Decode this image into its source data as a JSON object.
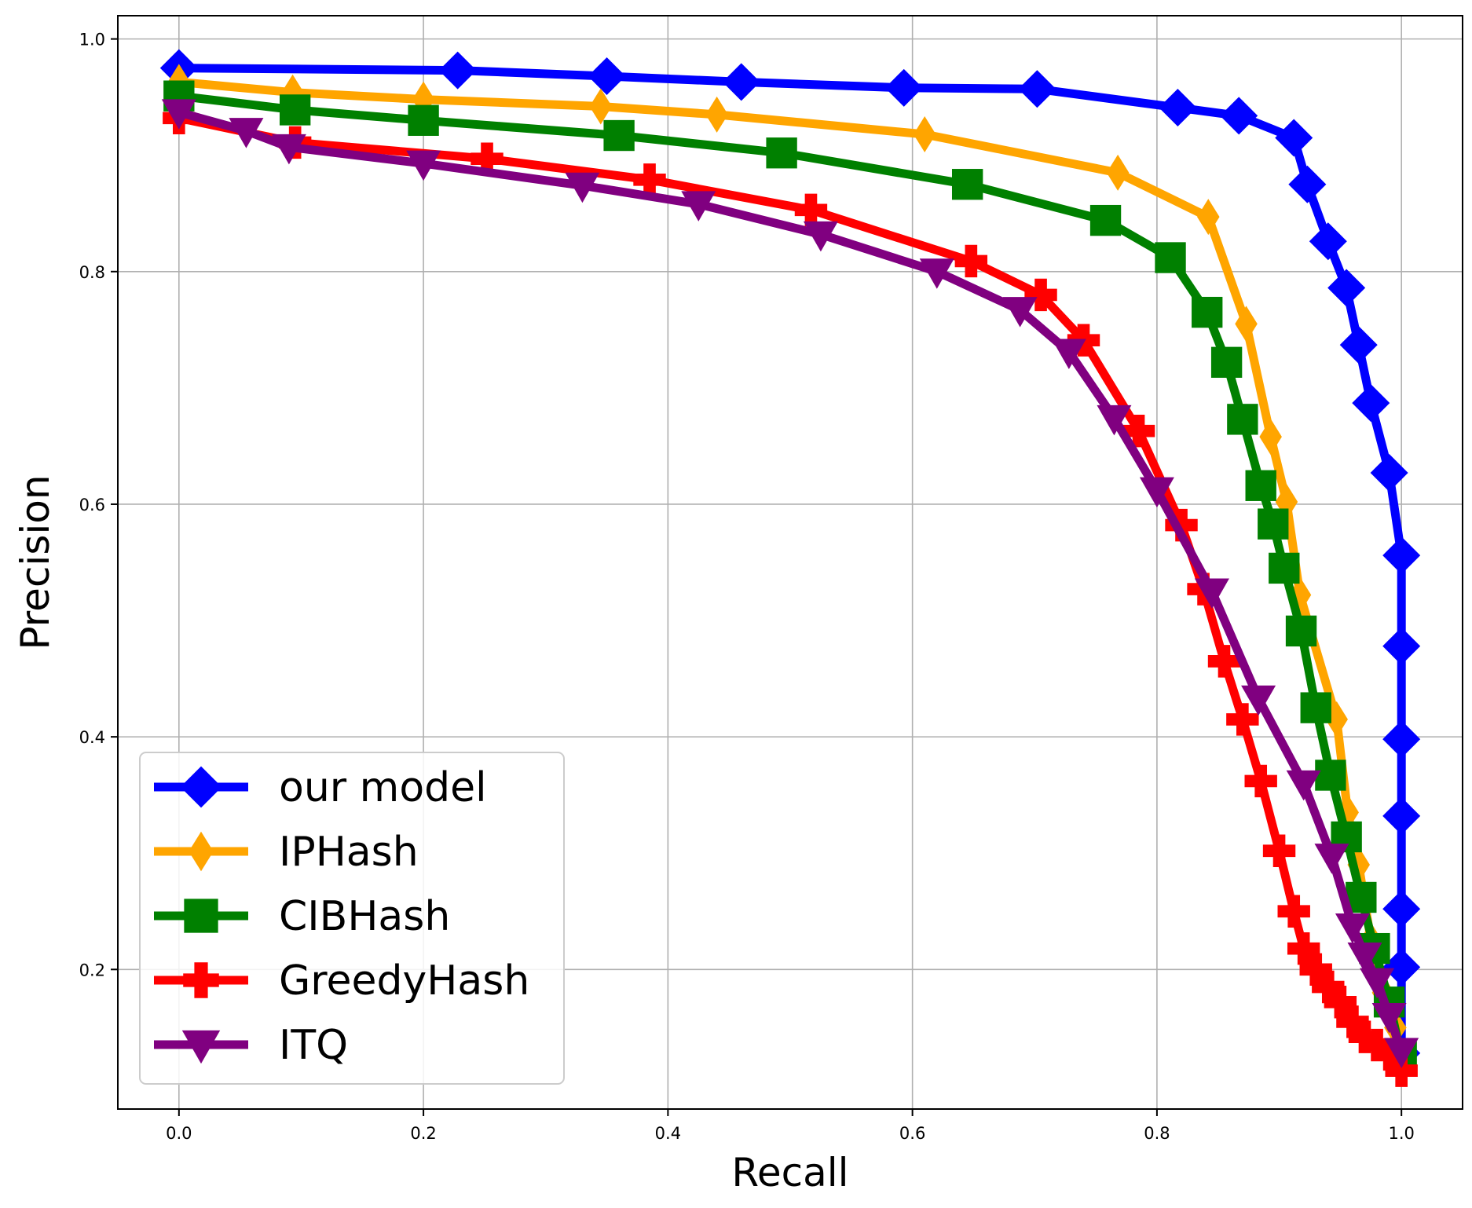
{
  "chart_data": {
    "type": "line",
    "xlabel": "Recall",
    "ylabel": "Precision",
    "xlim": [
      -0.05,
      1.05
    ],
    "ylim": [
      0.08,
      1.02
    ],
    "xticks": [
      "0.0",
      "0.2",
      "0.4",
      "0.6",
      "0.8",
      "1.0"
    ],
    "yticks": [
      "0.2",
      "0.4",
      "0.6",
      "0.8",
      "1.0"
    ],
    "grid": true,
    "legend_position": "lower-left",
    "series": [
      {
        "name": "our model",
        "color": "#0000ff",
        "marker": "diamond",
        "points": [
          [
            0.0,
            0.975
          ],
          [
            0.228,
            0.973
          ],
          [
            0.35,
            0.968
          ],
          [
            0.46,
            0.963
          ],
          [
            0.593,
            0.958
          ],
          [
            0.702,
            0.957
          ],
          [
            0.817,
            0.941
          ],
          [
            0.867,
            0.934
          ],
          [
            0.912,
            0.915
          ],
          [
            0.923,
            0.875
          ],
          [
            0.94,
            0.826
          ],
          [
            0.955,
            0.786
          ],
          [
            0.965,
            0.737
          ],
          [
            0.975,
            0.687
          ],
          [
            0.99,
            0.627
          ],
          [
            1.0,
            0.556
          ],
          [
            1.0,
            0.478
          ],
          [
            1.0,
            0.398
          ],
          [
            1.0,
            0.332
          ],
          [
            1.0,
            0.252
          ],
          [
            1.0,
            0.202
          ],
          [
            1.0,
            0.128
          ]
        ]
      },
      {
        "name": "IPHash",
        "color": "#ffa500",
        "marker": "thin_diamond",
        "points": [
          [
            0.0,
            0.963
          ],
          [
            0.093,
            0.954
          ],
          [
            0.2,
            0.948
          ],
          [
            0.345,
            0.942
          ],
          [
            0.44,
            0.935
          ],
          [
            0.61,
            0.918
          ],
          [
            0.768,
            0.885
          ],
          [
            0.842,
            0.847
          ],
          [
            0.873,
            0.755
          ],
          [
            0.893,
            0.658
          ],
          [
            0.906,
            0.602
          ],
          [
            0.917,
            0.522
          ],
          [
            0.947,
            0.415
          ],
          [
            0.956,
            0.335
          ],
          [
            0.965,
            0.29
          ],
          [
            0.975,
            0.225
          ],
          [
            0.985,
            0.18
          ],
          [
            0.995,
            0.15
          ]
        ]
      },
      {
        "name": "CIBHash",
        "color": "#008000",
        "marker": "square",
        "points": [
          [
            0.0,
            0.951
          ],
          [
            0.095,
            0.939
          ],
          [
            0.2,
            0.93
          ],
          [
            0.36,
            0.917
          ],
          [
            0.493,
            0.902
          ],
          [
            0.645,
            0.875
          ],
          [
            0.758,
            0.844
          ],
          [
            0.811,
            0.812
          ],
          [
            0.841,
            0.765
          ],
          [
            0.857,
            0.722
          ],
          [
            0.87,
            0.673
          ],
          [
            0.885,
            0.616
          ],
          [
            0.895,
            0.583
          ],
          [
            0.904,
            0.545
          ],
          [
            0.918,
            0.491
          ],
          [
            0.93,
            0.425
          ],
          [
            0.942,
            0.367
          ],
          [
            0.955,
            0.314
          ],
          [
            0.967,
            0.262
          ],
          [
            0.978,
            0.218
          ],
          [
            0.99,
            0.172
          ],
          [
            1.0,
            0.125
          ]
        ]
      },
      {
        "name": "GreedyHash",
        "color": "#ff0000",
        "marker": "plus",
        "points": [
          [
            0.0,
            0.932
          ],
          [
            0.095,
            0.911
          ],
          [
            0.252,
            0.897
          ],
          [
            0.385,
            0.879
          ],
          [
            0.517,
            0.853
          ],
          [
            0.648,
            0.809
          ],
          [
            0.705,
            0.78
          ],
          [
            0.74,
            0.741
          ],
          [
            0.785,
            0.663
          ],
          [
            0.82,
            0.582
          ],
          [
            0.838,
            0.527
          ],
          [
            0.855,
            0.465
          ],
          [
            0.87,
            0.415
          ],
          [
            0.885,
            0.362
          ],
          [
            0.9,
            0.302
          ],
          [
            0.912,
            0.25
          ],
          [
            0.92,
            0.218
          ],
          [
            0.93,
            0.2
          ],
          [
            0.94,
            0.185
          ],
          [
            0.95,
            0.172
          ],
          [
            0.96,
            0.155
          ],
          [
            0.97,
            0.142
          ],
          [
            0.98,
            0.135
          ],
          [
            0.99,
            0.127
          ],
          [
            1.0,
            0.113
          ]
        ]
      },
      {
        "name": "ITQ",
        "color": "#800080",
        "marker": "triangle_down",
        "points": [
          [
            0.0,
            0.937
          ],
          [
            0.055,
            0.921
          ],
          [
            0.09,
            0.907
          ],
          [
            0.2,
            0.893
          ],
          [
            0.33,
            0.874
          ],
          [
            0.425,
            0.858
          ],
          [
            0.525,
            0.832
          ],
          [
            0.62,
            0.8
          ],
          [
            0.688,
            0.767
          ],
          [
            0.728,
            0.731
          ],
          [
            0.765,
            0.674
          ],
          [
            0.8,
            0.612
          ],
          [
            0.845,
            0.525
          ],
          [
            0.883,
            0.433
          ],
          [
            0.92,
            0.36
          ],
          [
            0.943,
            0.297
          ],
          [
            0.96,
            0.237
          ],
          [
            0.97,
            0.212
          ],
          [
            0.98,
            0.19
          ],
          [
            0.99,
            0.16
          ],
          [
            1.0,
            0.13
          ]
        ]
      }
    ]
  }
}
